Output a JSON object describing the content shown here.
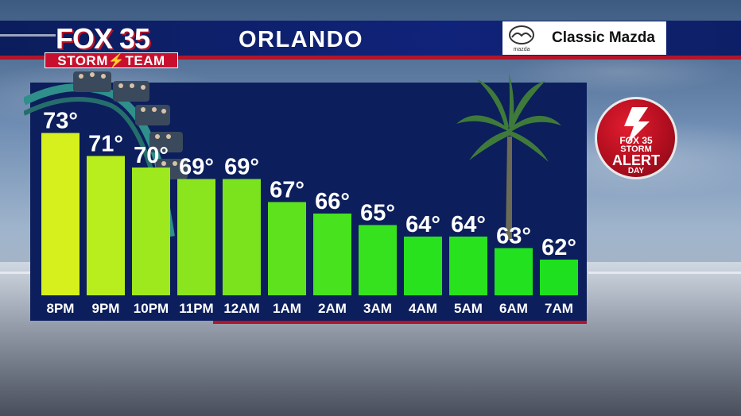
{
  "header": {
    "logo_main": "FOX 35",
    "logo_team": "STORM⚡TEAM",
    "city": "ORLANDO",
    "sponsor_name": "Classic Mazda",
    "sponsor_sub": "mazda"
  },
  "alert_badge": {
    "fox": "FOX 35",
    "storm": "STORM",
    "alert": "ALERT",
    "day": "DAY"
  },
  "colors": {
    "header_bg": "#10237a",
    "accent_red": "#b3142a",
    "panel_bg": "#0c1e5c",
    "bar_warm": "#d6f01e",
    "bar_cool": "#1ee01e"
  },
  "chart_data": {
    "type": "bar",
    "title": "",
    "xlabel": "",
    "ylabel": "",
    "categories": [
      "8PM",
      "9PM",
      "10PM",
      "11PM",
      "12AM",
      "1AM",
      "2AM",
      "3AM",
      "4AM",
      "5AM",
      "6AM",
      "7AM"
    ],
    "values": [
      73,
      71,
      70,
      69,
      69,
      67,
      66,
      65,
      64,
      64,
      63,
      62
    ],
    "value_labels": [
      "73°",
      "71°",
      "70°",
      "69°",
      "69°",
      "67°",
      "66°",
      "65°",
      "64°",
      "64°",
      "63°",
      "62°"
    ],
    "ylim": [
      60,
      74
    ],
    "grid": false,
    "legend": "none",
    "bar_colors": [
      "#d6f01e",
      "#b8ee1e",
      "#9ee81e",
      "#8ae51e",
      "#7ae31e",
      "#5ee21e",
      "#48e21e",
      "#36e21e",
      "#28e21e",
      "#28e21e",
      "#22e11e",
      "#1ee01e"
    ]
  }
}
